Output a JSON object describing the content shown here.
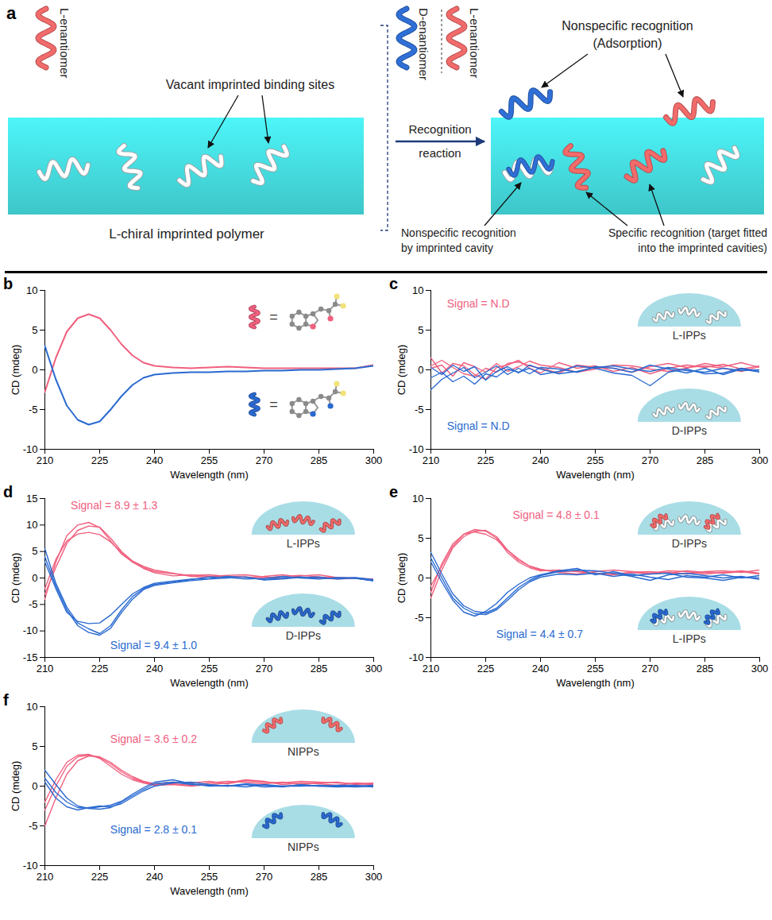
{
  "panel_a": {
    "label": "a",
    "top_label": "L-enantiomer",
    "vacant_label": "Vacant imprinted binding sites",
    "polymer_label": "L-chiral imprinted polymer",
    "d_label": "D-enantiomer",
    "l_label": "L-enantiomer",
    "arrow_label": [
      "Recognition",
      "reaction"
    ],
    "adsorption_label": [
      "Nonspecific recognition",
      "(Adsorption)"
    ],
    "cavity_label": [
      "Nonspecific recognition",
      "by imprinted cavity"
    ],
    "specific_label": [
      "Specific recognition (target fitted",
      "into the imprinted cavities)"
    ],
    "colors": {
      "L": "#f26b6b",
      "D": "#2f6fd6",
      "polymer": "#3ec6c9"
    }
  },
  "chart_data": [
    {
      "type": "line",
      "panel": "b",
      "xlabel": "Wavelength (nm)",
      "ylabel": "CD (mdeg)",
      "x": [
        210,
        213,
        216,
        219,
        222,
        225,
        228,
        231,
        234,
        237,
        240,
        245,
        250,
        255,
        260,
        265,
        270,
        275,
        280,
        285,
        290,
        295,
        300
      ],
      "xlim": [
        210,
        300
      ],
      "xticks": [
        210,
        225,
        240,
        255,
        270,
        285,
        300
      ],
      "ylim": [
        -10,
        10
      ],
      "yticks": [
        -10,
        -5,
        0,
        5,
        10
      ],
      "series": [
        {
          "color": "#f0607f",
          "values": [
            -2.8,
            1.5,
            4.8,
            6.5,
            7.0,
            6.5,
            5.0,
            3.2,
            1.8,
            0.9,
            0.5,
            0.3,
            0.2,
            0.3,
            0.4,
            0.3,
            0.2,
            0.2,
            0.2,
            0.2,
            0.2,
            0.2,
            0.6
          ]
        },
        {
          "color": "#2a6ad0",
          "values": [
            3.0,
            -1.2,
            -4.5,
            -6.3,
            -6.9,
            -6.5,
            -5.0,
            -3.3,
            -1.9,
            -1.0,
            -0.6,
            -0.4,
            -0.3,
            -0.3,
            -0.2,
            -0.2,
            -0.1,
            -0.1,
            0,
            0,
            0.1,
            0.2,
            0.5
          ]
        }
      ],
      "annotations": [],
      "insets": [
        {
          "label": "=",
          "type": "molecule",
          "color": "#f0607f"
        },
        {
          "label": "=",
          "type": "molecule",
          "color": "#2a6ad0"
        }
      ]
    },
    {
      "type": "line",
      "panel": "c",
      "xlabel": "Wavelength (nm)",
      "ylabel": "CD (mdeg)",
      "x": [
        210,
        213,
        216,
        219,
        222,
        225,
        228,
        231,
        234,
        237,
        240,
        245,
        250,
        255,
        260,
        265,
        270,
        275,
        280,
        285,
        290,
        295,
        300
      ],
      "xlim": [
        210,
        300
      ],
      "xticks": [
        210,
        225,
        240,
        255,
        270,
        285,
        300
      ],
      "ylim": [
        -10,
        10
      ],
      "yticks": [
        -10,
        -5,
        0,
        5,
        10
      ],
      "series": [
        {
          "color": "#f0607f",
          "values": [
            0.5,
            1.2,
            0.3,
            -0.5,
            -0.8,
            0.2,
            -0.3,
            0.8,
            1.0,
            0.5,
            0.2,
            -0.4,
            0.6,
            0.3,
            0.2,
            -0.3,
            0.4,
            0.8,
            0.3,
            0.5,
            0.2,
            -0.2,
            0.4
          ]
        },
        {
          "color": "#f0607f",
          "values": [
            1.5,
            -0.4,
            0.8,
            0.5,
            -0.6,
            -1.2,
            0.3,
            0.6,
            1.2,
            0.2,
            -0.4,
            0.9,
            0.2,
            0.5,
            -0.2,
            0.3,
            -0.5,
            0.2,
            0.6,
            0.3,
            0.7,
            0.1,
            0.5
          ]
        },
        {
          "color": "#f0607f",
          "values": [
            0.2,
            0.6,
            -0.8,
            0.9,
            0.4,
            -0.3,
            0.8,
            -0.2,
            0.4,
            1.1,
            0.6,
            0.3,
            -0.3,
            0.1,
            0.6,
            0.5,
            0.1,
            -0.2,
            0.2,
            0.8,
            0.4,
            0.9,
            0.3
          ]
        },
        {
          "color": "#2a6ad0",
          "values": [
            -1.0,
            -0.3,
            -1.5,
            -0.8,
            -1.8,
            -0.5,
            -0.9,
            0.1,
            -0.3,
            0.2,
            -0.6,
            -0.2,
            0.5,
            0.2,
            -0.4,
            -0.7,
            -2.0,
            -0.3,
            0.1,
            -0.5,
            -0.4,
            0.2,
            -0.2
          ]
        },
        {
          "color": "#2a6ad0",
          "values": [
            -2.5,
            -1.2,
            -0.4,
            0.3,
            -1.0,
            -0.3,
            0.5,
            -0.6,
            0.2,
            -0.5,
            0.3,
            0.1,
            -0.3,
            0.4,
            0.2,
            -0.3,
            0.6,
            0.1,
            -0.4,
            0.2,
            -0.6,
            0.1,
            -0.3
          ]
        },
        {
          "color": "#2a6ad0",
          "values": [
            0.3,
            -0.6,
            0.6,
            -0.2,
            0.4,
            -1.3,
            -0.2,
            0.4,
            -0.4,
            0.6,
            0.1,
            -0.5,
            -0.2,
            0.3,
            0.5,
            0.1,
            -0.2,
            0.3,
            -0.1,
            -0.3,
            0.2,
            -0.1,
            0.0
          ]
        }
      ],
      "annotations": [
        {
          "text": "Signal = N.D",
          "color": "#f0607f"
        },
        {
          "text": "Signal = N.D",
          "color": "#2a6ad0"
        }
      ],
      "insets": [
        {
          "label": "L-IPPs",
          "type": "empty",
          "color": "#ffffff"
        },
        {
          "label": "D-IPPs",
          "type": "empty",
          "color": "#ffffff"
        }
      ]
    },
    {
      "type": "line",
      "panel": "d",
      "xlabel": "Wavelength (nm)",
      "ylabel": "CD (mdeg)",
      "x": [
        210,
        213,
        216,
        219,
        222,
        225,
        228,
        231,
        234,
        237,
        240,
        245,
        250,
        255,
        260,
        265,
        270,
        275,
        280,
        285,
        290,
        295,
        300
      ],
      "xlim": [
        210,
        300
      ],
      "xticks": [
        210,
        225,
        240,
        255,
        270,
        285,
        300
      ],
      "ylim": [
        -15,
        15
      ],
      "yticks": [
        -15,
        -10,
        -5,
        0,
        5,
        10,
        15
      ],
      "series": [
        {
          "color": "#f0607f",
          "values": [
            -4,
            3,
            8,
            10,
            10.5,
            9.5,
            7,
            4.5,
            3,
            2,
            1.2,
            0.8,
            0.5,
            0.6,
            0.3,
            0.2,
            0.0,
            0.3,
            0.5,
            0.2,
            0.1,
            0,
            -0.3
          ]
        },
        {
          "color": "#f0607f",
          "values": [
            -3,
            2,
            6.5,
            9,
            9.8,
            9.6,
            7.5,
            5,
            3.2,
            2.2,
            1.5,
            0.9,
            0.3,
            0.2,
            0.4,
            0.1,
            0.3,
            0.6,
            0.2,
            0,
            -0.2,
            -0.1,
            -0.4
          ]
        },
        {
          "color": "#f0607f",
          "values": [
            -2,
            3.5,
            7,
            8.3,
            8.6,
            8.2,
            6.8,
            4.8,
            3,
            1.8,
            1.0,
            0.4,
            0.6,
            0.3,
            0.5,
            0.6,
            0.2,
            -0.1,
            0.4,
            0.6,
            0.1,
            -0.1,
            -0.2
          ]
        },
        {
          "color": "#2a6ad0",
          "values": [
            5.5,
            -1,
            -5.5,
            -8.5,
            -9.6,
            -10.5,
            -9,
            -6,
            -3.5,
            -2,
            -1.2,
            -0.8,
            -0.3,
            0.2,
            0.1,
            -0.2,
            -0.1,
            0.3,
            0,
            -0.2,
            0.1,
            -0.1,
            -0.5
          ]
        },
        {
          "color": "#2a6ad0",
          "values": [
            3,
            -2,
            -6.5,
            -8.2,
            -8.6,
            -8.5,
            -7,
            -5,
            -3,
            -1.8,
            -1,
            -0.6,
            -0.2,
            -0.1,
            0.3,
            0.1,
            -0.3,
            0,
            0.2,
            -0.1,
            0,
            0.1,
            -0.3
          ]
        },
        {
          "color": "#2a6ad0",
          "values": [
            4,
            -1.5,
            -6,
            -9,
            -10.3,
            -10.8,
            -9.5,
            -6.5,
            -4,
            -2.2,
            -1.4,
            -0.9,
            -0.5,
            -0.2,
            0,
            0.2,
            -0.4,
            -0.2,
            0.1,
            0.2,
            -0.2,
            0,
            -0.6
          ]
        }
      ],
      "annotations": [
        {
          "text": "Signal = 8.9 ± 1.3",
          "color": "#f0607f"
        },
        {
          "text": "Signal = 9.4 ± 1.0",
          "color": "#2a6ad0"
        }
      ],
      "insets": [
        {
          "label": "L-IPPs",
          "type": "specific",
          "color": "#f26b6b"
        },
        {
          "label": "D-IPPs",
          "type": "specific",
          "color": "#2a6ad0"
        }
      ]
    },
    {
      "type": "line",
      "panel": "e",
      "xlabel": "Wavelength (nm)",
      "ylabel": "CD (mdeg)",
      "x": [
        210,
        213,
        216,
        219,
        222,
        225,
        228,
        231,
        234,
        237,
        240,
        245,
        250,
        255,
        260,
        265,
        270,
        275,
        280,
        285,
        290,
        295,
        300
      ],
      "xlim": [
        210,
        300
      ],
      "xticks": [
        210,
        225,
        240,
        255,
        270,
        285,
        300
      ],
      "ylim": [
        -10,
        10
      ],
      "yticks": [
        -10,
        -5,
        0,
        5,
        10
      ],
      "series": [
        {
          "color": "#f0607f",
          "values": [
            -2.5,
            1,
            3.8,
            5.2,
            5.9,
            6,
            5.2,
            3.5,
            2.2,
            1.5,
            1.0,
            0.8,
            0.9,
            0.6,
            0.5,
            0.7,
            0.8,
            0.6,
            0.9,
            0.7,
            0.6,
            0.8,
            0.5
          ]
        },
        {
          "color": "#f0607f",
          "values": [
            -1.8,
            1.8,
            4.3,
            5.5,
            5.8,
            5.5,
            4.8,
            3.5,
            2.4,
            1.5,
            1.1,
            0.7,
            0.5,
            0.8,
            1.0,
            0.8,
            0.6,
            0.9,
            0.8,
            0.5,
            0.7,
            0.9,
            0.6
          ]
        },
        {
          "color": "#f0607f",
          "values": [
            -1,
            1.5,
            4,
            5.5,
            6.1,
            5.9,
            5,
            3.2,
            2.0,
            1.3,
            0.9,
            1.0,
            0.8,
            0.6,
            0.4,
            0.7,
            0.5,
            0.7,
            0.5,
            0.8,
            0.9,
            0.7,
            1.0
          ]
        },
        {
          "color": "#2a6ad0",
          "values": [
            3.2,
            0.5,
            -2,
            -3.5,
            -4.2,
            -4.4,
            -3.8,
            -2.5,
            -1.2,
            -0.3,
            0.3,
            0.8,
            1.0,
            0.9,
            0.6,
            0.2,
            -0.3,
            0.4,
            0.6,
            0.3,
            0.0,
            0.2,
            -0.2
          ]
        },
        {
          "color": "#2a6ad0",
          "values": [
            2.5,
            0,
            -2.5,
            -3.8,
            -4.5,
            -4.6,
            -4.0,
            -2.8,
            -1.5,
            -0.5,
            0.1,
            0.5,
            0.4,
            0.6,
            0.2,
            0.5,
            0.1,
            -0.2,
            0.3,
            0.1,
            0.4,
            0.0,
            0.3
          ]
        },
        {
          "color": "#2a6ad0",
          "values": [
            2.0,
            -0.5,
            -2.8,
            -4.3,
            -4.8,
            -4.2,
            -3.2,
            -1.8,
            -0.8,
            0,
            0.4,
            0.9,
            1.2,
            0.4,
            0.8,
            0.3,
            0.5,
            0.6,
            0.1,
            0.0,
            -0.3,
            0.1,
            0.0
          ]
        }
      ],
      "annotations": [
        {
          "text": "Signal = 4.8 ± 0.1",
          "color": "#f0607f"
        },
        {
          "text": "Signal = 4.4 ± 0.7",
          "color": "#2a6ad0"
        }
      ],
      "insets": [
        {
          "label": "D-IPPs",
          "type": "partial",
          "color": "#f26b6b"
        },
        {
          "label": "L-IPPs",
          "type": "partial",
          "color": "#2a6ad0"
        }
      ]
    },
    {
      "type": "line",
      "panel": "f",
      "xlabel": "Wavelength (nm)",
      "ylabel": "CD (mdeg)",
      "x": [
        210,
        213,
        216,
        219,
        222,
        225,
        228,
        231,
        234,
        237,
        240,
        245,
        250,
        255,
        260,
        265,
        270,
        275,
        280,
        285,
        290,
        295,
        300
      ],
      "xlim": [
        210,
        300
      ],
      "xticks": [
        210,
        225,
        240,
        255,
        270,
        285,
        300
      ],
      "ylim": [
        -10,
        10
      ],
      "yticks": [
        -10,
        -5,
        0,
        5,
        10
      ],
      "series": [
        {
          "color": "#f0607f",
          "values": [
            -5,
            -1.5,
            1.5,
            3.2,
            3.8,
            3.7,
            3.0,
            2.0,
            1.2,
            0.6,
            0.3,
            0.5,
            0.4,
            0.6,
            0.3,
            0.7,
            0.5,
            0.4,
            0.6,
            0.5,
            0.4,
            0.3,
            0.2
          ]
        },
        {
          "color": "#f0607f",
          "values": [
            -3,
            0,
            2.5,
            3.7,
            3.9,
            3.6,
            2.8,
            1.8,
            1.0,
            0.5,
            0.2,
            0.3,
            0.1,
            0.4,
            0.6,
            0.5,
            0.3,
            0.5,
            0.2,
            0.4,
            0.5,
            0.2,
            0.4
          ]
        },
        {
          "color": "#f0607f",
          "values": [
            -2,
            0.8,
            3.0,
            3.9,
            4.0,
            3.5,
            2.5,
            1.5,
            0.8,
            0.4,
            0.1,
            0.2,
            0.0,
            0.2,
            0.4,
            0.8,
            0.6,
            0.2,
            0.4,
            0.3,
            0.1,
            0.4,
            0.3
          ]
        },
        {
          "color": "#2a6ad0",
          "values": [
            2.0,
            0.2,
            -1.5,
            -2.5,
            -2.8,
            -2.9,
            -2.7,
            -2.0,
            -1.2,
            -0.4,
            0.3,
            0.5,
            0.2,
            0.1,
            0.0,
            0.2,
            -0.1,
            0.0,
            0.1,
            0.0,
            -0.1,
            0.0,
            0.1
          ]
        },
        {
          "color": "#2a6ad0",
          "values": [
            1.0,
            -0.8,
            -2.0,
            -2.7,
            -2.8,
            -2.6,
            -2.4,
            -1.9,
            -1.0,
            -0.2,
            0.5,
            0.8,
            0.3,
            0.0,
            0.1,
            -0.1,
            0.2,
            0.0,
            0.0,
            0.1,
            0.0,
            -0.1,
            0.0
          ]
        },
        {
          "color": "#2a6ad0",
          "values": [
            0.5,
            -1.5,
            -2.6,
            -3.0,
            -2.7,
            -2.5,
            -2.6,
            -2.2,
            -1.4,
            -0.6,
            0.0,
            0.4,
            0.5,
            0.2,
            0.0,
            0.3,
            0.1,
            -0.1,
            0.2,
            0.0,
            0.1,
            0.1,
            -0.1
          ]
        }
      ],
      "annotations": [
        {
          "text": "Signal = 3.6 ± 0.2",
          "color": "#f0607f"
        },
        {
          "text": "Signal = 2.8 ± 0.1",
          "color": "#2a6ad0"
        }
      ],
      "insets": [
        {
          "label": "NIPPs",
          "type": "adsorbed",
          "color": "#f26b6b"
        },
        {
          "label": "NIPPs",
          "type": "adsorbed",
          "color": "#2a6ad0"
        }
      ]
    }
  ]
}
